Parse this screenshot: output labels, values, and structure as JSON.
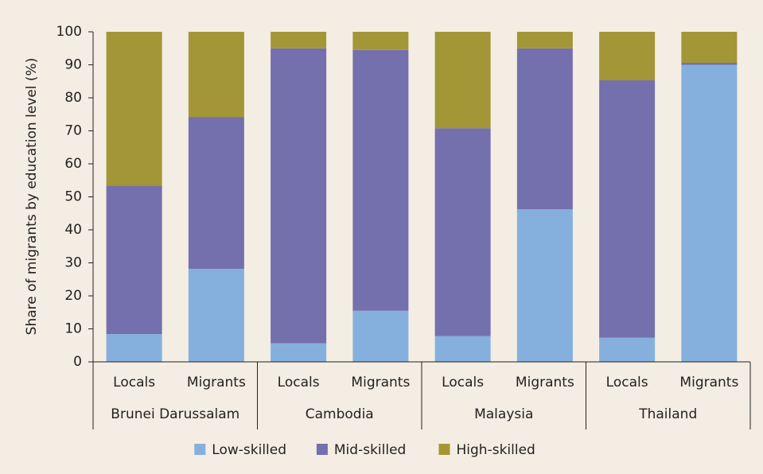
{
  "chart_data": {
    "type": "stacked_bar",
    "ylabel": "Share of migrants by education level (%)",
    "categories": [
      "Locals",
      "Migrants",
      "Locals",
      "Migrants",
      "Locals",
      "Migrants",
      "Locals",
      "Migrants"
    ],
    "groups": [
      "Brunei Darussalam",
      "Cambodia",
      "Malaysia",
      "Thailand"
    ],
    "series": [
      {
        "name": "Low-skilled",
        "color": "#85b0dd",
        "values": [
          8.4,
          28.2,
          5.6,
          15.5,
          7.8,
          46.2,
          7.3,
          90
        ]
      },
      {
        "name": "Mid-skilled",
        "color": "#7470ad",
        "values": [
          45,
          46,
          89.4,
          79,
          63,
          48.8,
          78,
          0.6
        ]
      },
      {
        "name": "High-skilled",
        "color": "#a39637",
        "values": [
          46.6,
          25.8,
          5,
          5.5,
          29.2,
          5,
          14.7,
          9.4
        ]
      }
    ],
    "ylim": [
      0,
      100
    ],
    "yticks": [
      0,
      10,
      20,
      30,
      40,
      50,
      60,
      70,
      80,
      90,
      100
    ],
    "grid": false,
    "legend": "bottom"
  }
}
